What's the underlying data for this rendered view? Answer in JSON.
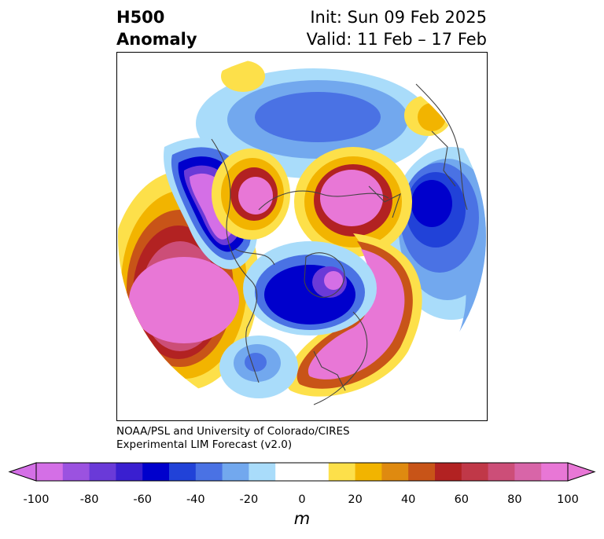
{
  "title": {
    "left_line1": "H500",
    "left_line2": "Anomaly",
    "init": "Init: Sun 09 Feb 2025",
    "valid": "Valid: 11 Feb – 17 Feb"
  },
  "credit": {
    "line1": "NOAA/PSL and University of Colorado/CIRES",
    "line2": "Experimental LIM Forecast (v2.0)"
  },
  "colorbar": {
    "unit": "m",
    "ticks": [
      "-100",
      "-80",
      "-60",
      "-40",
      "-20",
      "0",
      "20",
      "40",
      "60",
      "80",
      "100"
    ],
    "bins": [
      {
        "range": "-100 to -90",
        "color": "#d46fe6"
      },
      {
        "range": "-90 to -80",
        "color": "#9b52e0"
      },
      {
        "range": "-80 to -70",
        "color": "#6a3ad8"
      },
      {
        "range": "-70 to -60",
        "color": "#3a1fd0"
      },
      {
        "range": "-60 to -50",
        "color": "#0000cc"
      },
      {
        "range": "-50 to -40",
        "color": "#2142d8"
      },
      {
        "range": "-40 to -30",
        "color": "#4a72e4"
      },
      {
        "range": "-30 to -20",
        "color": "#72a8ee"
      },
      {
        "range": "-20 to -10",
        "color": "#a9dcfa"
      },
      {
        "range": "-10 to 10",
        "color": "#ffffff"
      },
      {
        "range": "10 to 20",
        "color": "#fde04a"
      },
      {
        "range": "20 to 30",
        "color": "#f2b400"
      },
      {
        "range": "30 to 40",
        "color": "#df8a10"
      },
      {
        "range": "40 to 50",
        "color": "#c85418"
      },
      {
        "range": "50 to 60",
        "color": "#b22222"
      },
      {
        "range": "60 to 70",
        "color": "#c03848"
      },
      {
        "range": "70 to 80",
        "color": "#cc4e78"
      },
      {
        "range": "80 to 90",
        "color": "#d865a8"
      },
      {
        "range": "90 to 100",
        "color": "#e877d6"
      }
    ],
    "under_color": "#d46fe6",
    "over_color": "#e877d6"
  }
}
